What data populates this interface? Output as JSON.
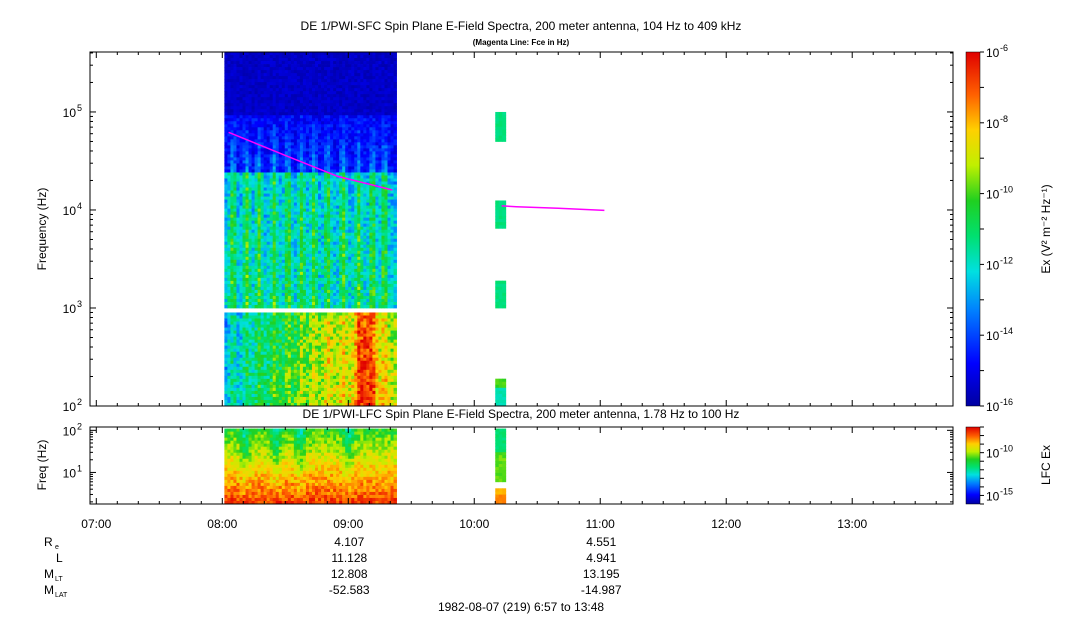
{
  "chart_data": [
    {
      "type": "heatmap",
      "title": "DE 1/PWI-SFC  Spin Plane E-Field Spectra, 200 meter antenna, 104 Hz to 409 kHz",
      "subtitle": "(Magenta Line: Fce in Hz)",
      "ylabel": "Frequency (Hz)",
      "yscale": "log",
      "ylim": [
        100,
        409000
      ],
      "yticks": [
        {
          "value": 100,
          "label": "10",
          "exp": "2"
        },
        {
          "value": 1000,
          "label": "10",
          "exp": "3"
        },
        {
          "value": 10000,
          "label": "10",
          "exp": "4"
        },
        {
          "value": 100000,
          "label": "10",
          "exp": "5"
        }
      ],
      "colorbar": {
        "label": "Ex (V² m⁻² Hz⁻¹)",
        "scale": "log",
        "range": [
          1e-16,
          1e-06
        ],
        "ticks": [
          {
            "value": 1e-06,
            "label": "10",
            "exp": "-6"
          },
          {
            "value": 1e-08,
            "label": "10",
            "exp": "-8"
          },
          {
            "value": 1e-10,
            "label": "10",
            "exp": "-10"
          },
          {
            "value": 1e-12,
            "label": "10",
            "exp": "-12"
          },
          {
            "value": 1e-14,
            "label": "10",
            "exp": "-14"
          },
          {
            "value": 1e-16,
            "label": "10",
            "exp": "-16"
          }
        ]
      },
      "fce_line": {
        "color": "#ff00ff",
        "points": [
          {
            "time": "08:03",
            "freq_hz": 62000
          },
          {
            "time": "08:30",
            "freq_hz": 36000
          },
          {
            "time": "08:55",
            "freq_hz": 22000
          },
          {
            "time": "09:21",
            "freq_hz": 16000
          },
          {
            "time": "10:13",
            "freq_hz": 11000
          },
          {
            "time": "10:20",
            "freq_hz": 10800
          },
          {
            "time": "10:40",
            "freq_hz": 10400
          },
          {
            "time": "11:02",
            "freq_hz": 9900
          }
        ]
      },
      "data_blocks": [
        {
          "start": "08:01",
          "end": "09:23",
          "fmin_hz": 1000,
          "fmax_hz": 409000,
          "pattern": "sfc-high"
        },
        {
          "start": "08:01",
          "end": "09:23",
          "fmin_hz": 100,
          "fmax_hz": 900,
          "pattern": "sfc-low"
        },
        {
          "start": "10:10",
          "end": "10:15",
          "fmin_hz": 50000,
          "fmax_hz": 100000,
          "pattern": "snap"
        },
        {
          "start": "10:10",
          "end": "10:15",
          "fmin_hz": 6500,
          "fmax_hz": 12500,
          "pattern": "snap"
        },
        {
          "start": "10:10",
          "end": "10:15",
          "fmin_hz": 1000,
          "fmax_hz": 1900,
          "pattern": "snap"
        },
        {
          "start": "10:10",
          "end": "10:15",
          "fmin_hz": 100,
          "fmax_hz": 190,
          "pattern": "snap-low"
        }
      ]
    },
    {
      "type": "heatmap",
      "title": "DE 1/PWI-LFC  Spin Plane E-Field Spectra, 200 meter antenna, 1.78 Hz to 100 Hz",
      "ylabel": "Freq (Hz)",
      "yscale": "log",
      "ylim": [
        1.78,
        120
      ],
      "yticks": [
        {
          "value": 10,
          "label": "10",
          "exp": "1"
        },
        {
          "value": 100,
          "label": "10",
          "exp": "2"
        }
      ],
      "colorbar": {
        "label": "LFC Ex",
        "scale": "log",
        "range": [
          1e-16,
          1e-07
        ],
        "ticks": [
          {
            "value": 1e-10,
            "label": "10",
            "exp": "-10"
          },
          {
            "value": 1e-15,
            "label": "10",
            "exp": "-15"
          }
        ]
      },
      "data_blocks": [
        {
          "start": "08:01",
          "end": "09:23",
          "fmin_hz": 1.78,
          "fmax_hz": 110,
          "pattern": "lfc"
        },
        {
          "start": "10:10",
          "end": "10:15",
          "fmin_hz": 6,
          "fmax_hz": 110,
          "pattern": "lfc-snap"
        },
        {
          "start": "10:10",
          "end": "10:15",
          "fmin_hz": 1.78,
          "fmax_hz": 4.2,
          "pattern": "lfc-snap-low"
        }
      ]
    }
  ],
  "time_axis": {
    "range": [
      "06:57",
      "13:48"
    ],
    "ticks": [
      "07:00",
      "08:00",
      "09:00",
      "10:00",
      "11:00",
      "12:00",
      "13:00"
    ]
  },
  "ephemeris": {
    "rows": [
      {
        "label": "R",
        "sub": "e",
        "values": [
          "4.107",
          "4.551"
        ]
      },
      {
        "label": "L",
        "sub": "",
        "values": [
          "11.128",
          "4.941"
        ]
      },
      {
        "label": "M",
        "sub": "LT",
        "values": [
          "12.808",
          "13.195"
        ]
      },
      {
        "label": "M",
        "sub": "LAT",
        "values": [
          "-52.583",
          "-14.987"
        ]
      }
    ],
    "times": [
      "09:00",
      "11:00"
    ]
  },
  "footer": "1982-08-07 (219) 6:57 to 13:48"
}
